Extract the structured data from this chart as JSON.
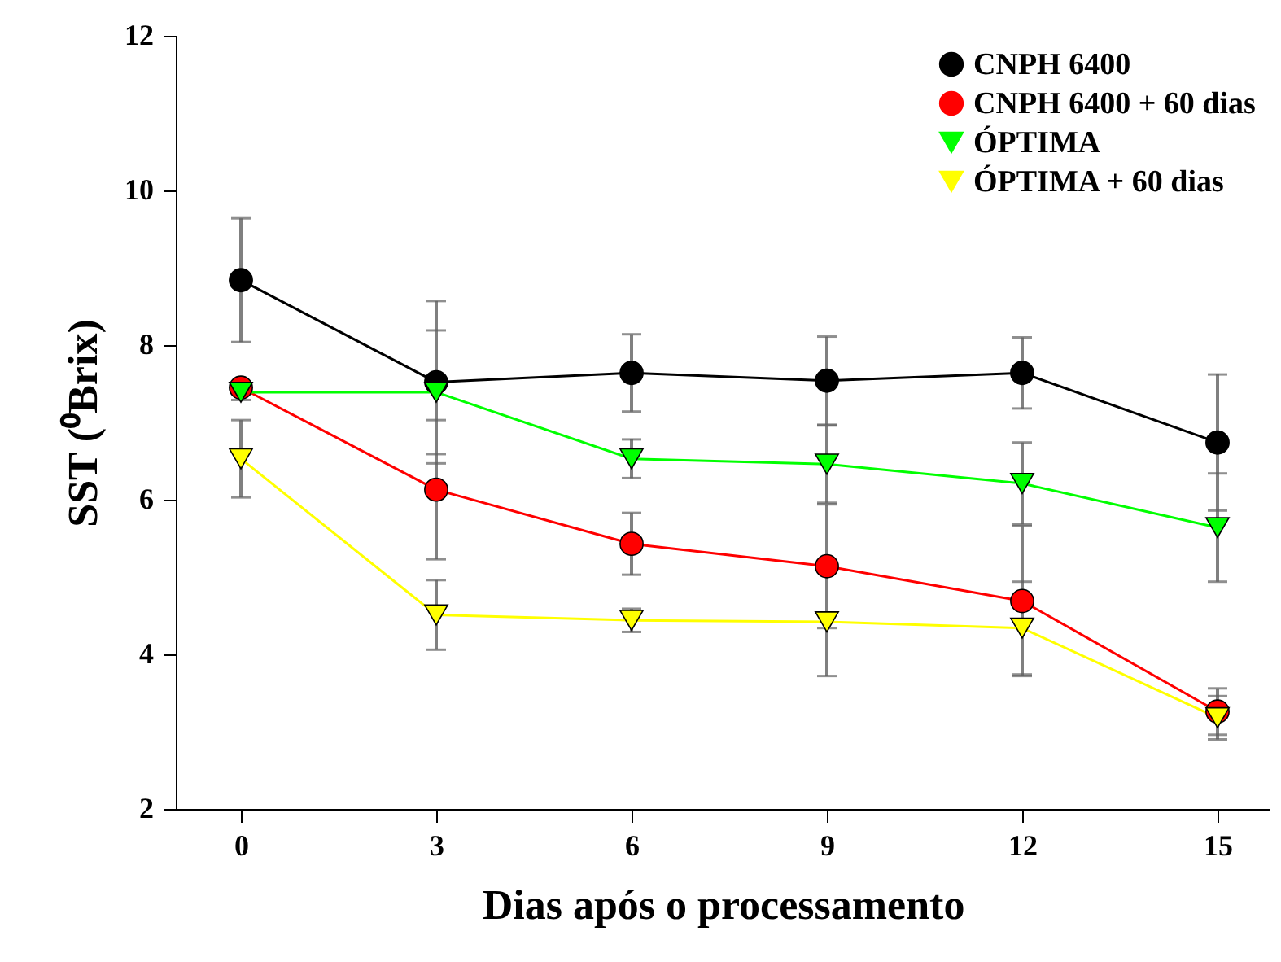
{
  "chart_data": {
    "type": "line",
    "xlabel": "Dias após o processamento",
    "ylabel": "SST (⁰Brix)",
    "x": [
      0,
      3,
      6,
      9,
      12,
      15
    ],
    "xlim": [
      -1,
      15.8
    ],
    "xticks": [
      0,
      3,
      6,
      9,
      12,
      15
    ],
    "ylim": [
      2,
      12
    ],
    "yticks": [
      2,
      4,
      6,
      8,
      10,
      12
    ],
    "grid": false,
    "legend": "top right",
    "line_style": "solid",
    "series": [
      {
        "name": "CNPH 6400",
        "color": "#000000",
        "marker": "circle",
        "values": [
          8.84,
          7.52,
          7.64,
          7.54,
          7.64,
          6.74
        ],
        "errors": [
          0.8,
          1.05,
          0.5,
          0.57,
          0.46,
          0.88
        ]
      },
      {
        "name": "CNPH 6400 + 60 dias",
        "color": "#ff0000",
        "marker": "circle",
        "values": [
          7.45,
          6.13,
          5.43,
          5.14,
          4.69,
          3.26
        ],
        "errors": [
          0.05,
          0.9,
          0.4,
          0.8,
          0.97,
          0.3
        ]
      },
      {
        "name": "ÓPTIMA",
        "color": "#00ff00",
        "marker": "triangle",
        "values": [
          7.39,
          7.39,
          6.53,
          6.46,
          6.21,
          5.64
        ],
        "errors": [
          0.1,
          0.8,
          0.25,
          0.5,
          0.53,
          0.7
        ]
      },
      {
        "name": "ÓPTIMA + 60 dias",
        "color": "#ffff00",
        "marker": "triangle",
        "values": [
          6.53,
          4.51,
          4.44,
          4.42,
          4.34,
          3.18
        ],
        "errors": [
          0.5,
          0.45,
          0.15,
          0.7,
          0.6,
          0.28
        ]
      }
    ]
  }
}
